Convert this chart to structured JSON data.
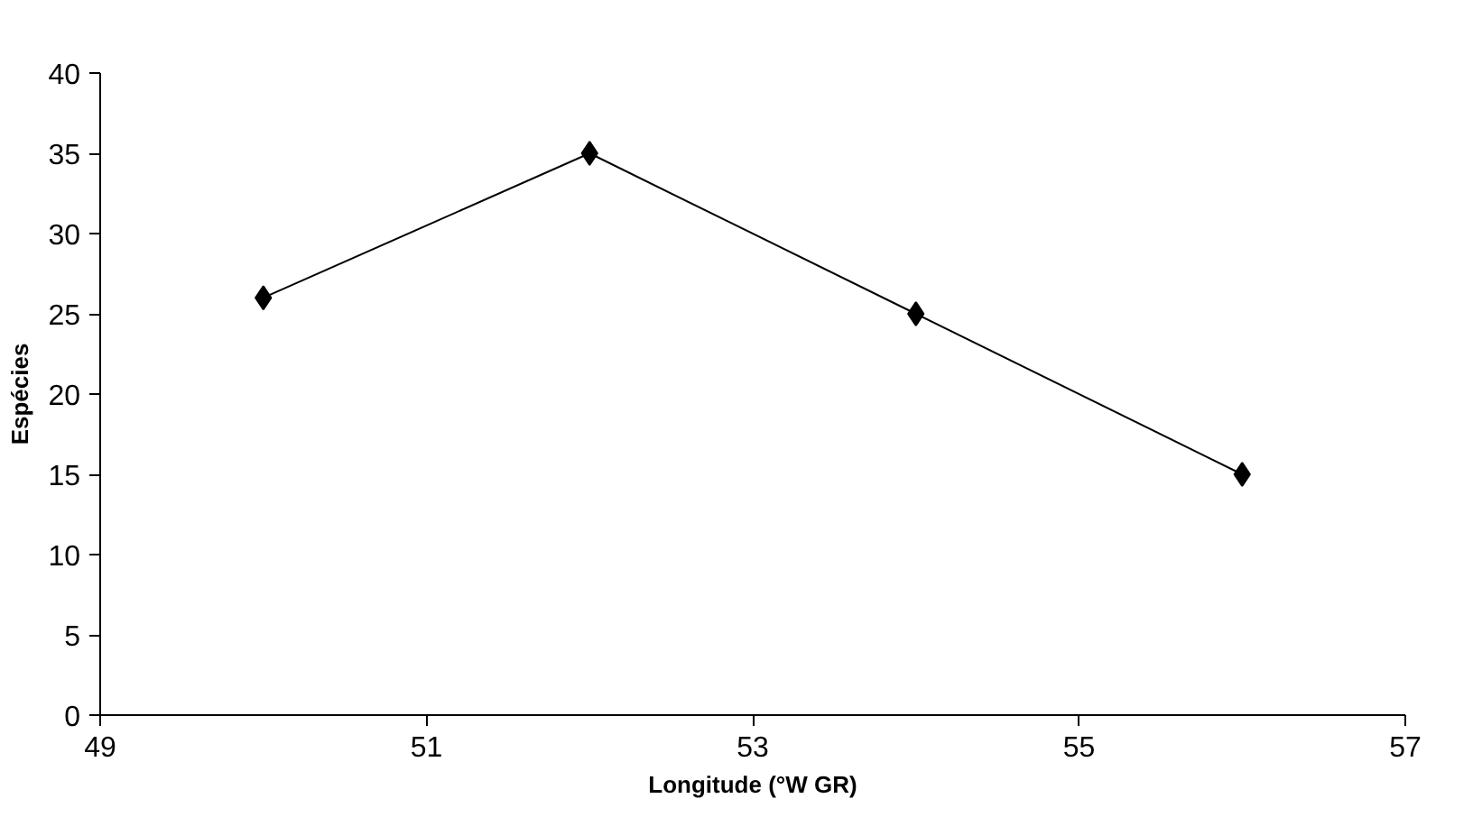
{
  "chart_data": {
    "type": "line",
    "xlabel": "Longitude (°W GR)",
    "ylabel": "Espécies",
    "x": [
      50,
      52,
      54,
      56
    ],
    "series": [
      {
        "color": "#000000",
        "values": [
          26,
          35,
          25,
          15
        ]
      }
    ],
    "xlim": [
      49,
      57
    ],
    "xticks": [
      49,
      51,
      53,
      55,
      57
    ],
    "ylim": [
      0,
      40
    ],
    "yticks": [
      0,
      5,
      10,
      15,
      20,
      25,
      30,
      35,
      40
    ],
    "marker": "diamond",
    "line_style": "solid"
  }
}
